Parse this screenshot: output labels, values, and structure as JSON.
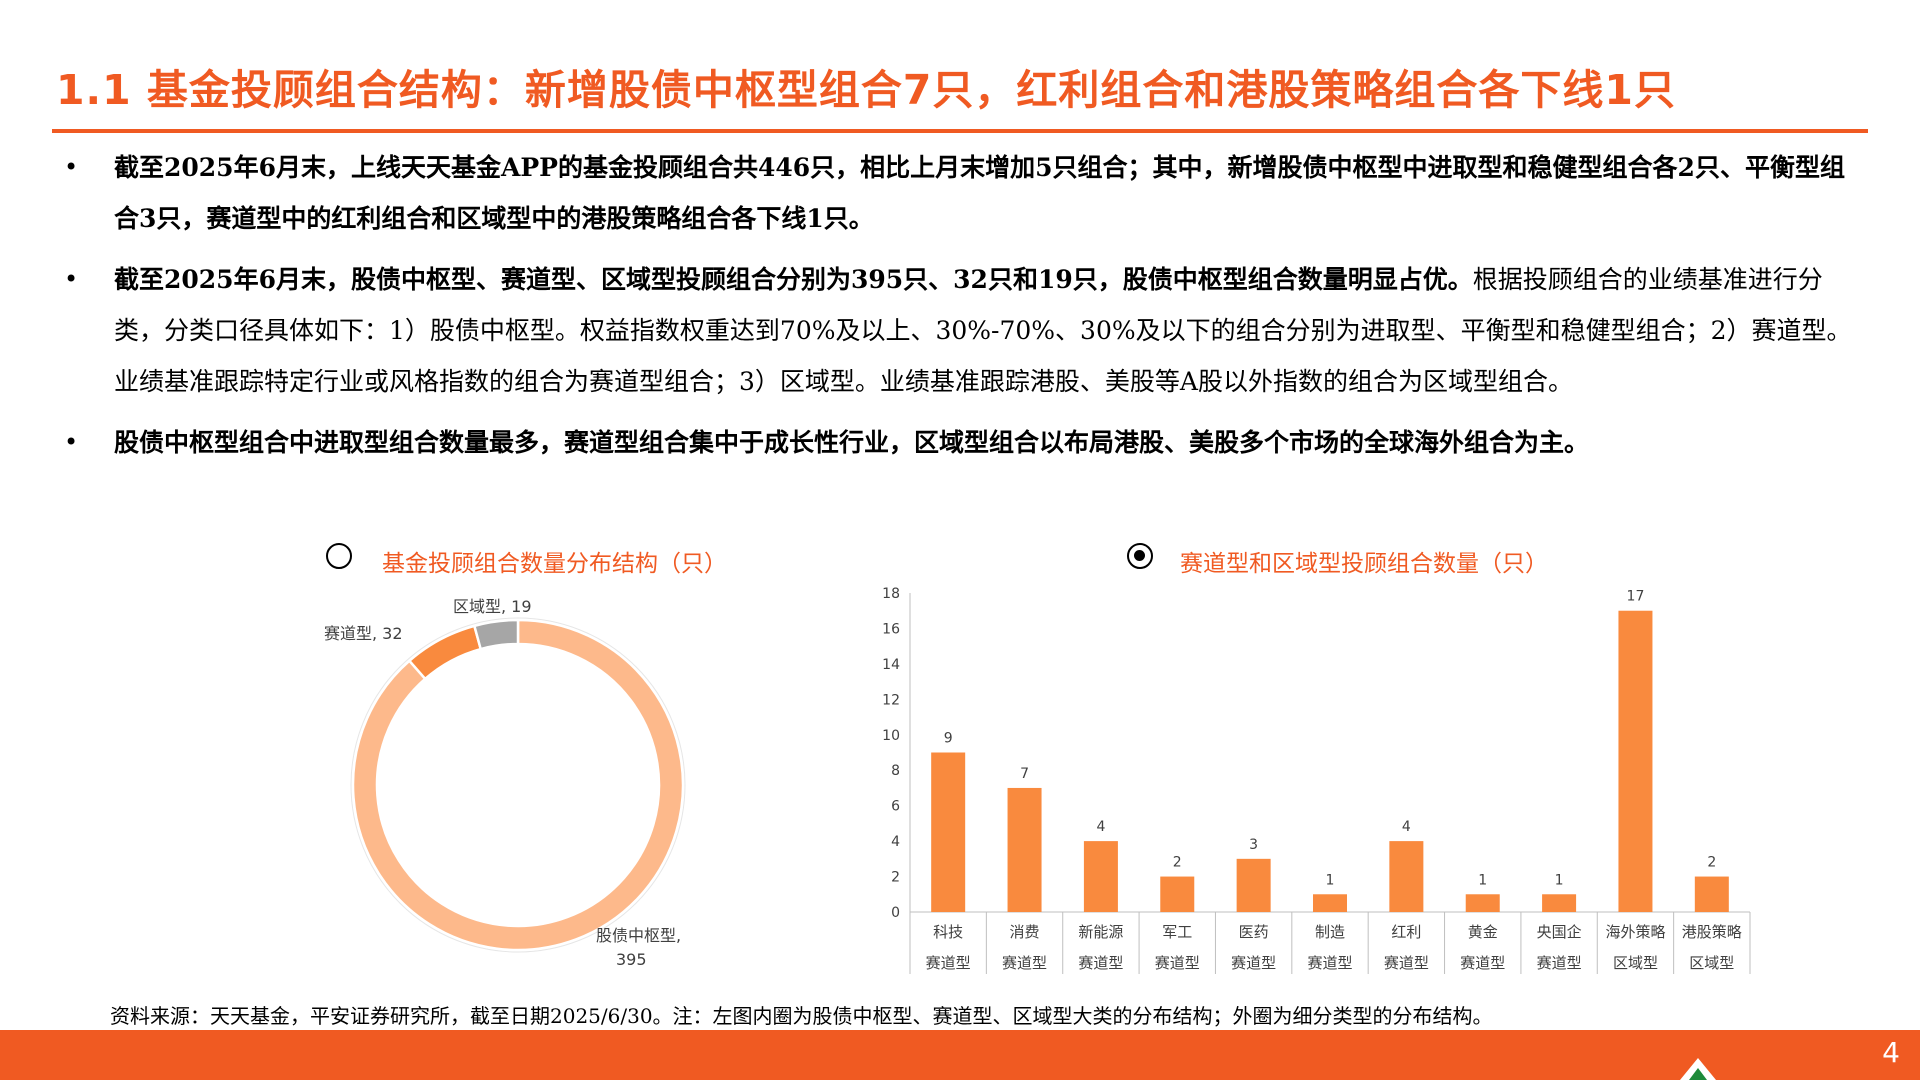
{
  "title": "1.1  基金投顾组合结构：新增股债中枢型组合7只，红利组合和港股策略组合各下线1只",
  "bullets": [
    {
      "bold": "截至2025年6月末，上线天天基金APP的基金投顾组合共446只，相比上月末增加5只组合；其中，新增股债中枢型中进取型和稳健型组合各2只、平衡型组合3只，赛道型中的红利组合和区域型中的港股策略组合各下线1只。",
      "normal": ""
    },
    {
      "bold": "截至2025年6月末，股债中枢型、赛道型、区域型投顾组合分别为395只、32只和19只，股债中枢型组合数量明显占优。",
      "normal": "根据投顾组合的业绩基准进行分类，分类口径具体如下：1）股债中枢型。权益指数权重达到70%及以上、30%-70%、30%及以下的组合分别为进取型、平衡型和稳健型组合；2）赛道型。业绩基准跟踪特定行业或风格指数的组合为赛道型组合；3）区域型。业绩基准跟踪港股、美股等A股以外指数的组合为区域型组合。"
    },
    {
      "bold": "股债中枢型组合中进取型组合数量最多，赛道型组合集中于成长性行业，区域型组合以布局港股、美股多个市场的全球海外组合为主。",
      "normal": ""
    }
  ],
  "bullet_symbol": "•",
  "chart_data": [
    {
      "type": "pie",
      "title": "基金投顾组合数量分布结构（只）",
      "categories": [
        "股债中枢型",
        "赛道型",
        "区域型"
      ],
      "values": [
        395,
        32,
        19
      ],
      "label_texts": [
        "股债中枢型,",
        "赛道型, 32",
        "区域型, 19"
      ],
      "value_texts": [
        "395"
      ],
      "colors": [
        "#FDB98B",
        "#F98A3E",
        "#A6A6A6"
      ]
    },
    {
      "type": "bar",
      "title": "赛道型和区域型投顾组合数量（只）",
      "categories": [
        "科技",
        "消费",
        "新能源",
        "军工",
        "医药",
        "制造",
        "红利",
        "黄金",
        "央国企",
        "海外策略",
        "港股策略"
      ],
      "groups": [
        "赛道型",
        "赛道型",
        "赛道型",
        "赛道型",
        "赛道型",
        "赛道型",
        "赛道型",
        "赛道型",
        "赛道型",
        "区域型",
        "区域型"
      ],
      "values": [
        9,
        7,
        4,
        2,
        3,
        1,
        4,
        1,
        1,
        17,
        2
      ],
      "ylim": [
        0,
        18
      ],
      "yticks": [
        0,
        2,
        4,
        6,
        8,
        10,
        12,
        14,
        16,
        18
      ],
      "color": "#F98A3E"
    }
  ],
  "source": "资料来源：天天基金，平安证券研究所，截至日期2025/6/30。注：左图内圈为股债中枢型、赛道型、区域型大类的分布结构；外圈为细分类型的分布结构。",
  "page_number": "4",
  "colors": {
    "accent": "#F05A22",
    "bar": "#F98A3E"
  }
}
